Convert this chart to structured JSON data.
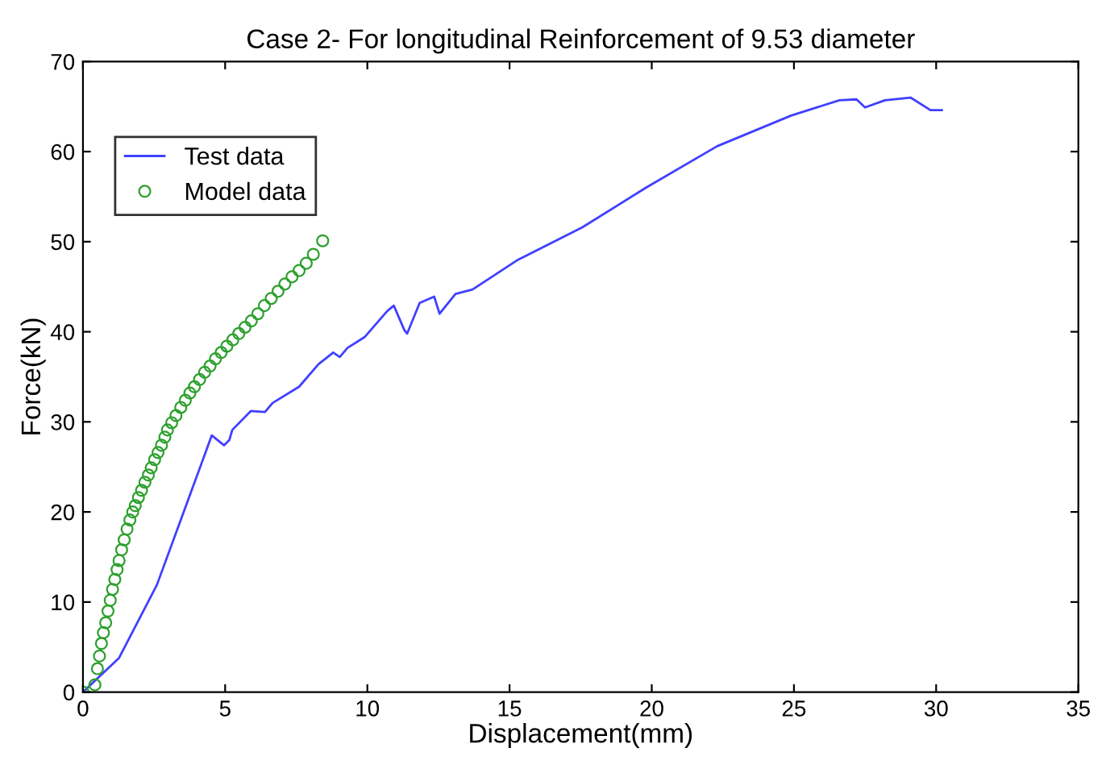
{
  "chart_data": {
    "type": "line",
    "title": "Case 2- For longitudinal Reinforcement of 9.53 diameter",
    "xlabel": "Displacement(mm)",
    "ylabel": "Force(kN)",
    "xlim": [
      0,
      35
    ],
    "ylim": [
      0,
      70
    ],
    "xticks": [
      0,
      5,
      10,
      15,
      20,
      25,
      30,
      35
    ],
    "yticks": [
      0,
      10,
      20,
      30,
      40,
      50,
      60,
      70
    ],
    "grid": false,
    "legend": "top left",
    "series": [
      {
        "name": "Test data",
        "color": "#4040ff",
        "marker": "none",
        "x": [
          0,
          1.27,
          2.6,
          3.45,
          4.53,
          4.96,
          5.15,
          5.25,
          5.9,
          6.4,
          6.67,
          7.6,
          8.28,
          8.8,
          9.03,
          9.3,
          9.9,
          10.7,
          10.93,
          11.3,
          11.4,
          11.84,
          12.35,
          12.54,
          13.1,
          13.7,
          15.3,
          17.56,
          19.8,
          22.3,
          24.9,
          26.6,
          27.2,
          27.5,
          28.2,
          29.1,
          29.8,
          30.2
        ],
        "values": [
          0,
          3.8,
          11.9,
          19.2,
          28.5,
          27.4,
          28,
          29.1,
          31.2,
          31.1,
          32.1,
          33.9,
          36.4,
          37.7,
          37.2,
          38.2,
          39.4,
          42.3,
          42.9,
          40.2,
          39.8,
          43.2,
          43.9,
          42,
          44.2,
          44.7,
          48,
          51.6,
          56,
          60.6,
          64,
          65.7,
          65.8,
          64.9,
          65.7,
          66,
          64.6,
          64.6
        ]
      },
      {
        "name": "Model data",
        "type": "scatter",
        "color": "#2ca02c",
        "marker": "circle",
        "x": [
          0,
          0.42,
          0.51,
          0.58,
          0.65,
          0.72,
          0.8,
          0.88,
          0.96,
          1.04,
          1.12,
          1.2,
          1.27,
          1.36,
          1.45,
          1.55,
          1.65,
          1.75,
          1.84,
          1.95,
          2.06,
          2.18,
          2.3,
          2.4,
          2.52,
          2.64,
          2.76,
          2.88,
          2.97,
          3.12,
          3.27,
          3.44,
          3.6,
          3.76,
          3.92,
          4.1,
          4.28,
          4.47,
          4.66,
          4.86,
          5.06,
          5.27,
          5.48,
          5.7,
          5.92,
          6.15,
          6.38,
          6.62,
          6.86,
          7.1,
          7.35,
          7.6,
          7.85,
          8.1,
          8.43
        ],
        "values": [
          0,
          0.8,
          2.6,
          4,
          5.4,
          6.6,
          7.7,
          9,
          10.2,
          11.4,
          12.5,
          13.6,
          14.6,
          15.8,
          16.9,
          18.1,
          19.1,
          20,
          20.7,
          21.6,
          22.4,
          23.3,
          24.1,
          24.9,
          25.8,
          26.6,
          27.4,
          28.3,
          29.1,
          29.9,
          30.7,
          31.6,
          32.4,
          33.2,
          33.9,
          34.7,
          35.5,
          36.2,
          37,
          37.7,
          38.4,
          39.1,
          39.8,
          40.5,
          41.2,
          42,
          42.9,
          43.7,
          44.5,
          45.3,
          46.1,
          46.8,
          47.6,
          48.6,
          50.1
        ]
      }
    ]
  }
}
